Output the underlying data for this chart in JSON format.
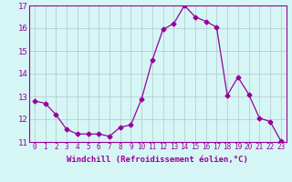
{
  "x": [
    0,
    1,
    2,
    3,
    4,
    5,
    6,
    7,
    8,
    9,
    10,
    11,
    12,
    13,
    14,
    15,
    16,
    17,
    18,
    19,
    20,
    21,
    22,
    23
  ],
  "y": [
    12.8,
    12.7,
    12.2,
    11.55,
    11.35,
    11.35,
    11.35,
    11.25,
    11.65,
    11.75,
    12.9,
    14.6,
    15.95,
    16.2,
    17.0,
    16.5,
    16.3,
    16.05,
    13.05,
    13.85,
    13.1,
    12.05,
    11.9,
    11.05
  ],
  "line_color": "#990099",
  "marker": "D",
  "marker_size": 2.5,
  "bg_color": "#d6f5f5",
  "grid_color": "#b0c8c8",
  "xlabel": "Windchill (Refroidissement éolien,°C)",
  "xlim": [
    -0.5,
    23.5
  ],
  "ylim": [
    11.0,
    17.0
  ],
  "yticks": [
    11,
    12,
    13,
    14,
    15,
    16,
    17
  ],
  "xticks": [
    0,
    1,
    2,
    3,
    4,
    5,
    6,
    7,
    8,
    9,
    10,
    11,
    12,
    13,
    14,
    15,
    16,
    17,
    18,
    19,
    20,
    21,
    22,
    23
  ],
  "tick_color": "#990099",
  "label_color": "#990099"
}
